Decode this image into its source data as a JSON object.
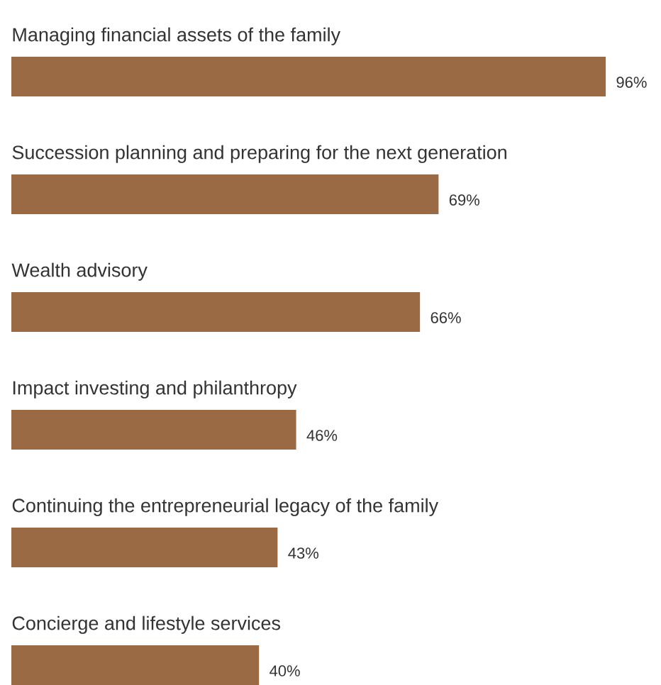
{
  "chart_data": {
    "type": "bar",
    "orientation": "horizontal",
    "categories": [
      "Managing financial assets of the family",
      "Succession planning and preparing for the next generation",
      "Wealth advisory",
      "Impact investing and philanthropy",
      "Continuing the entrepreneurial legacy of the family",
      "Concierge and lifestyle services"
    ],
    "values": [
      96,
      69,
      66,
      46,
      43,
      40
    ],
    "value_labels": [
      "96%",
      "69%",
      "66%",
      "46%",
      "43%",
      "40%"
    ],
    "color": "#9a6a44"
  }
}
